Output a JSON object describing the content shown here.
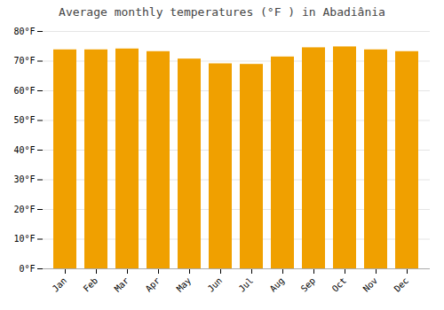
{
  "chart_data": {
    "type": "bar",
    "title": "Average monthly temperatures (°F ) in Abadiânia",
    "categories": [
      "Jan",
      "Feb",
      "Mar",
      "Apr",
      "May",
      "Jun",
      "Jul",
      "Aug",
      "Sep",
      "Oct",
      "Nov",
      "Dec"
    ],
    "values": [
      73.8,
      73.8,
      74.1,
      73.2,
      70.7,
      69.1,
      68.9,
      71.4,
      74.5,
      74.8,
      73.8,
      73.2
    ],
    "color": "#F0A000",
    "ylim": [
      0,
      80
    ],
    "yticks": [
      {
        "value": 0,
        "label": "0°F"
      },
      {
        "value": 10,
        "label": "10°F"
      },
      {
        "value": 20,
        "label": "20°F"
      },
      {
        "value": 30,
        "label": "30°F"
      },
      {
        "value": 40,
        "label": "40°F"
      },
      {
        "value": 50,
        "label": "50°F"
      },
      {
        "value": 60,
        "label": "60°F"
      },
      {
        "value": 70,
        "label": "70°F"
      },
      {
        "value": 80,
        "label": "80°F"
      }
    ],
    "grid": true
  }
}
